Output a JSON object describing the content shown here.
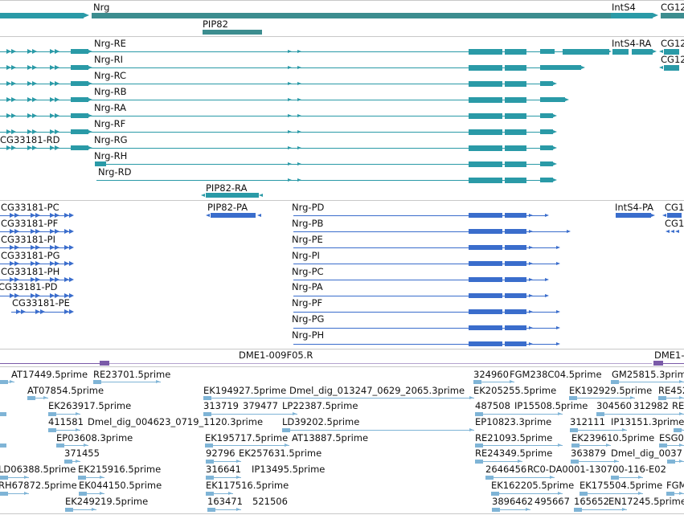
{
  "colors": {
    "teal": "#2a9aa7",
    "teal_dark": "#3c8d8f",
    "blue": "#3a6dcc",
    "purple": "#7a5aa8",
    "est": "#7fb4d6",
    "separator": "#c8c8c8"
  },
  "tracks": {
    "gene": {
      "labels": [
        "Nrg",
        "IntS4",
        "CG12",
        "PIP82"
      ]
    },
    "transcripts": {
      "labels": [
        "Nrg-RE",
        "Nrg-RI",
        "Nrg-RC",
        "Nrg-RB",
        "Nrg-RA",
        "Nrg-RF",
        "Nrg-RG",
        "Nrg-RH",
        "Nrg-RD",
        "CG33181-RD",
        "IntS4-RA",
        "CG12",
        "CG12",
        "PIP82-RA"
      ]
    },
    "proteins": {
      "labels": [
        "CG33181-PC",
        "CG33181-PF",
        "CG33181-PI",
        "CG33181-PG",
        "CG33181-PH",
        "CG33181-PD",
        "CG33181-PE",
        "PIP82-PA",
        "Nrg-PD",
        "Nrg-PB",
        "Nrg-PE",
        "Nrg-PI",
        "Nrg-PC",
        "Nrg-PA",
        "Nrg-PF",
        "Nrg-PG",
        "Nrg-PH",
        "IntS4-PA",
        "CG1",
        "CG1"
      ]
    },
    "dme": {
      "labels": [
        "DME1-009F05.R",
        "DME1-"
      ]
    },
    "ests": {
      "labels": [
        "AT17449.5prime",
        "RE23701.5prime",
        "324960",
        "FGM238C04.5prime",
        "GM25815.3prime",
        "AT07854.5prime",
        "EK194927.5prime",
        "Dmel_dig_013247_0629_2065.3prime",
        "EK205255.5prime",
        "EK192929.5prime",
        "RE452",
        "EK263917.5prime",
        "313719",
        "379477",
        "LP22387.5prime",
        "487508",
        "IP15508.5prime",
        "304560",
        "312982",
        "RE",
        "411581",
        "Dmel_dig_004623_0719_1120.3prime",
        "LD39202.5prime",
        "EP10823.3prime",
        "312111",
        "IP13151.3prime",
        "EP03608.3prime",
        "EK195717.5prime",
        "AT13887.5prime",
        "RE21093.5prime",
        "EK239610.5prime",
        "ESG0",
        "371455",
        "92796",
        "EK257631.5prime",
        "RE24349.5prime",
        "363879",
        "Dmel_dig_0037",
        "LD06388.5prime",
        "EK215916.5prime",
        "316641",
        "IP13495.5prime",
        "2646456",
        "RC0-DA0001-130700-116-E02",
        "RH67872.5prime",
        "EK044150.5prime",
        "EK117516.5prime",
        "EK162205.5prime",
        "EK175504.5prime",
        "FGM",
        "EK249219.5prime",
        "163471",
        "521506",
        "3896462",
        "495667",
        "165652",
        "EN17245.5prime"
      ]
    }
  }
}
